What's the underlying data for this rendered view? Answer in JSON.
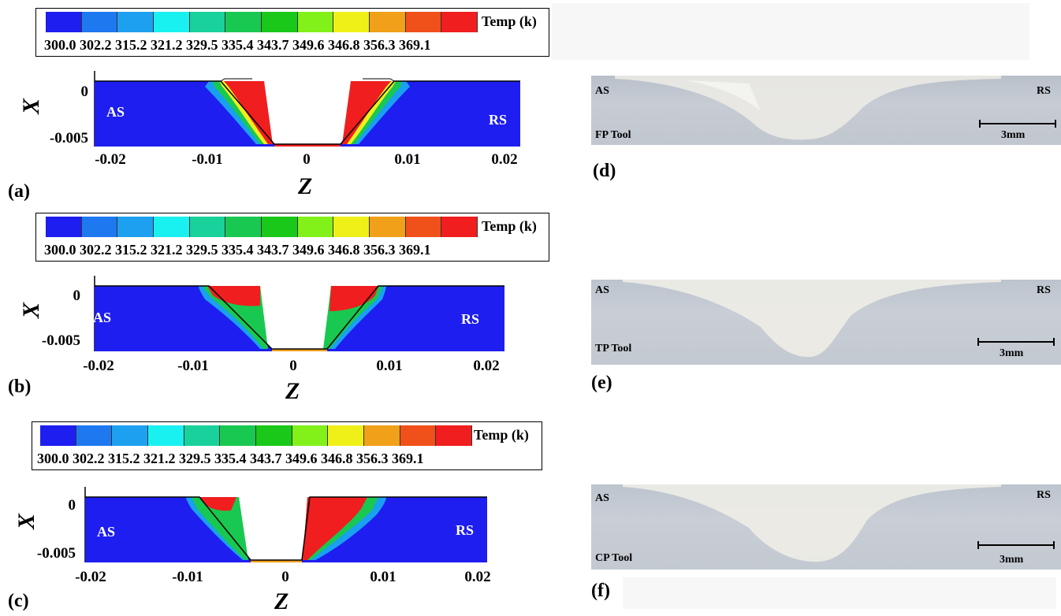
{
  "legend": {
    "title": "Temp (k)",
    "values_text": "300.0 302.2 315.2 321.2 329.5 335.4 343.7 349.6 346.8 356.3 369.1",
    "colors": [
      "#1e1ef0",
      "#1e78f0",
      "#1ea0f0",
      "#19f0f0",
      "#19d29b",
      "#19c850",
      "#19c819",
      "#82f019",
      "#f0f019",
      "#f0a019",
      "#f05019",
      "#f01e1e"
    ]
  },
  "axes": {
    "x_label": "X",
    "z_label": "Z",
    "y_ticks": [
      "0",
      "-0.005"
    ],
    "z_ticks": [
      "-0.02",
      "-0.01",
      "0",
      "0.01",
      "0.02"
    ]
  },
  "panels": [
    {
      "label": "(a)",
      "advancing": "AS",
      "retreating": "RS"
    },
    {
      "label": "(b)",
      "advancing": "AS",
      "retreating": "RS"
    },
    {
      "label": "(c)",
      "advancing": "AS",
      "retreating": "RS"
    }
  ],
  "photos": [
    {
      "label": "(d)",
      "advancing": "AS",
      "retreating": "RS",
      "tool": "FP Tool",
      "scale": "3mm"
    },
    {
      "label": "(e)",
      "advancing": "AS",
      "retreating": "RS",
      "tool": "TP Tool",
      "scale": "3mm"
    },
    {
      "label": "(f)",
      "advancing": "AS",
      "retreating": "RS",
      "tool": "CP Tool",
      "scale": "3mm"
    }
  ],
  "colors": {
    "base_field": "#1e1ef0",
    "hot": "#f01e1e",
    "photo_base": "#c4cad3",
    "photo_nugget": "#ecebe6"
  }
}
